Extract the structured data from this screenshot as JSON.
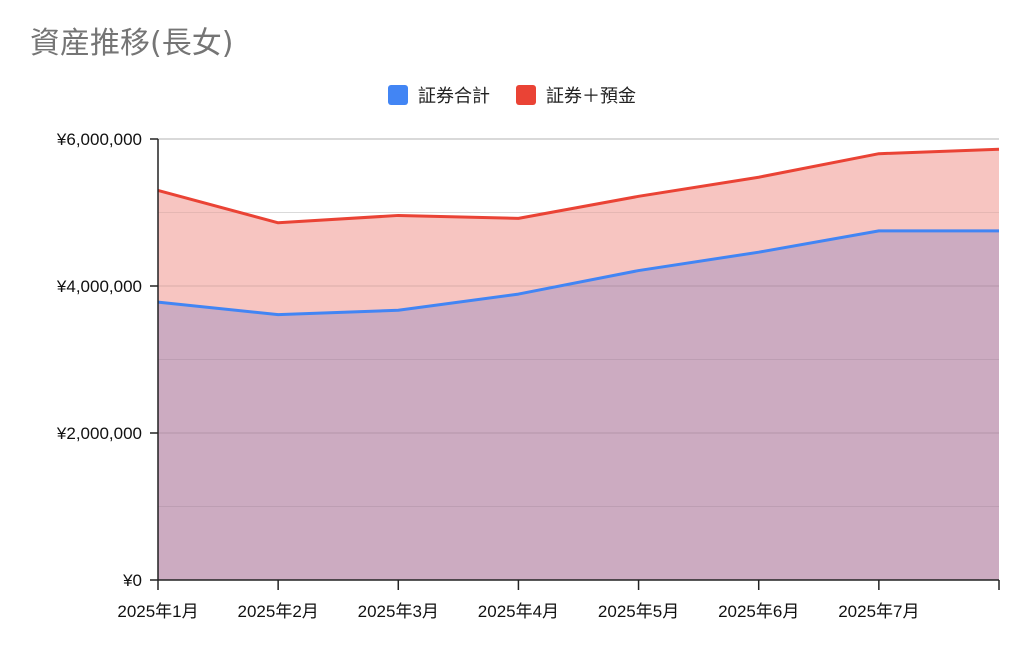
{
  "chart_data": {
    "type": "area",
    "title": "資産推移(長女)",
    "categories": [
      "2025年1月",
      "2025年2月",
      "2025年3月",
      "2025年4月",
      "2025年5月",
      "2025年6月",
      "2025年7月",
      ""
    ],
    "series": [
      {
        "name": "証券合計",
        "color": "#4285f4",
        "fill": "#ccabc1",
        "values": [
          3780000,
          3610000,
          3670000,
          3890000,
          4210000,
          4460000,
          4750000,
          4750000
        ]
      },
      {
        "name": "証券＋預金",
        "color": "#ea4335",
        "fill": "#f7c5c1",
        "values": [
          5300000,
          4860000,
          4960000,
          4920000,
          5220000,
          5480000,
          5800000,
          5860000
        ]
      }
    ],
    "ylim": [
      0,
      6000000
    ],
    "yticks": [
      {
        "value": 0,
        "label": "¥0"
      },
      {
        "value": 2000000,
        "label": "¥2,000,000"
      },
      {
        "value": 4000000,
        "label": "¥4,000,000"
      },
      {
        "value": 6000000,
        "label": "¥6,000,000"
      }
    ],
    "minor_gridlines": [
      1000000,
      3000000,
      5000000
    ],
    "legend_position": "top",
    "grid": true
  }
}
